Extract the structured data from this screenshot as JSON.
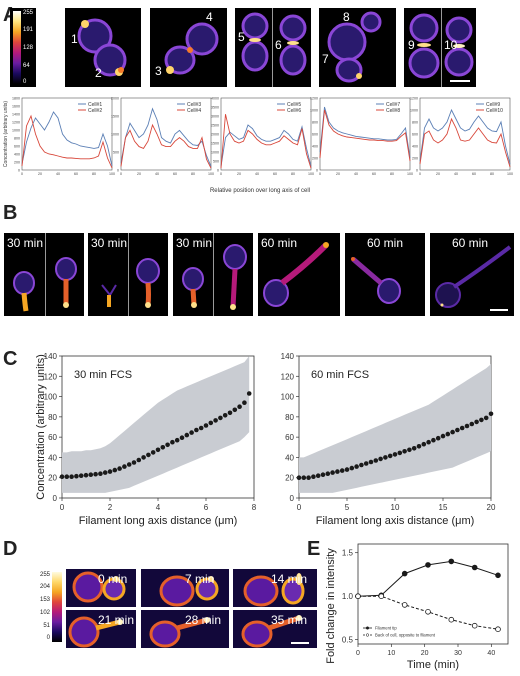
{
  "panels": {
    "A": "A",
    "B": "B",
    "C": "C",
    "D": "D",
    "E": "E"
  },
  "colormap_a": {
    "ticks": [
      "255",
      "191",
      "128",
      "64",
      "0"
    ]
  },
  "colormap_d": {
    "ticks": [
      "255",
      "204",
      "153",
      "102",
      "51",
      "0"
    ]
  },
  "cell_numbers": [
    "1",
    "2",
    "3",
    "4",
    "5",
    "6",
    "7",
    "8",
    "9",
    "10"
  ],
  "panel_b_times": [
    "30 min",
    "30 min",
    "30 min",
    "60 min",
    "60 min",
    "60 min"
  ],
  "panel_d_times": [
    "0 min",
    "7 min",
    "14 min",
    "21 min",
    "28 min",
    "35 min"
  ],
  "colors": {
    "blue": "#5b7fb5",
    "red": "#d8473a",
    "band": "#c9ccd2",
    "dots": "#1a1a1a"
  },
  "chart_data": [
    {
      "type": "line",
      "panel": "A",
      "ylabel": "Concentration (arbitrary units)",
      "xlabel": "Relative position over long axis of cell",
      "xlim": [
        0,
        100
      ],
      "x_ticks": [
        "0",
        "20",
        "40",
        "60",
        "80",
        "100"
      ],
      "subplots": [
        {
          "yticks": [
            "1800",
            "1600",
            "1400",
            "1200",
            "1000",
            "800",
            "600",
            "400",
            "200",
            "0"
          ],
          "ylim": [
            0,
            1800
          ],
          "series": [
            {
              "name": "Cell#1",
              "color": "#5b7fb5",
              "x": [
                0,
                5,
                10,
                15,
                20,
                25,
                30,
                35,
                40,
                45,
                50,
                55,
                60,
                65,
                70,
                75,
                80,
                85,
                90,
                95,
                100
              ],
              "y": [
                150,
                700,
                1050,
                1300,
                1150,
                1000,
                1200,
                1450,
                1300,
                900,
                750,
                680,
                650,
                600,
                580,
                560,
                540,
                560,
                900,
                600,
                100
              ]
            },
            {
              "name": "Cell#2",
              "color": "#d8473a",
              "x": [
                0,
                5,
                10,
                15,
                20,
                25,
                30,
                35,
                40,
                45,
                50,
                55,
                60,
                65,
                70,
                75,
                80,
                85,
                90,
                95,
                100
              ],
              "y": [
                100,
                1100,
                1350,
                900,
                600,
                450,
                400,
                380,
                350,
                320,
                300,
                300,
                290,
                280,
                280,
                280,
                300,
                350,
                700,
                300,
                50
              ]
            }
          ]
        },
        {
          "yticks": [
            "2000",
            "1500",
            "1000",
            "500",
            "0"
          ],
          "ylim": [
            0,
            2000
          ],
          "series": [
            {
              "name": "Cell#3",
              "color": "#5b7fb5",
              "x": [
                0,
                5,
                10,
                15,
                20,
                25,
                30,
                35,
                40,
                45,
                50,
                55,
                60,
                65,
                70,
                75,
                80,
                85,
                90,
                95,
                100
              ],
              "y": [
                200,
                900,
                1300,
                1100,
                900,
                1000,
                1250,
                1700,
                1400,
                900,
                800,
                750,
                1000,
                1100,
                950,
                800,
                700,
                680,
                800,
                400,
                100
              ]
            },
            {
              "name": "Cell#4",
              "color": "#d8473a",
              "x": [
                0,
                5,
                10,
                15,
                20,
                25,
                30,
                35,
                40,
                45,
                50,
                55,
                60,
                65,
                70,
                75,
                80,
                85,
                90,
                95,
                100
              ],
              "y": [
                100,
                900,
                1100,
                800,
                650,
                600,
                800,
                1250,
                1000,
                700,
                650,
                650,
                800,
                900,
                800,
                650,
                600,
                600,
                900,
                300,
                50
              ]
            }
          ]
        },
        {
          "yticks": [
            "4000",
            "3500",
            "3000",
            "2500",
            "2000",
            "1500",
            "1000",
            "500",
            "0"
          ],
          "ylim": [
            0,
            4000
          ],
          "series": [
            {
              "name": "Cell#5",
              "color": "#5b7fb5",
              "x": [
                0,
                5,
                10,
                15,
                20,
                25,
                30,
                35,
                40,
                45,
                50,
                55,
                60,
                65,
                70,
                75,
                80,
                85,
                90,
                95,
                100
              ],
              "y": [
                200,
                1800,
                2100,
                1900,
                1700,
                1800,
                2500,
                2300,
                1900,
                1700,
                1600,
                1600,
                1700,
                1800,
                2200,
                2000,
                1700,
                1600,
                2400,
                1200,
                200
              ]
            },
            {
              "name": "Cell#6",
              "color": "#d8473a",
              "x": [
                0,
                5,
                10,
                15,
                20,
                25,
                30,
                35,
                40,
                45,
                50,
                55,
                60,
                65,
                70,
                75,
                80,
                85,
                90,
                95,
                100
              ],
              "y": [
                100,
                3100,
                2000,
                1600,
                1500,
                1600,
                2200,
                2000,
                1700,
                1500,
                1400,
                1400,
                1500,
                1600,
                1900,
                1700,
                1500,
                1400,
                2300,
                900,
                100
              ]
            }
          ]
        },
        {
          "yticks": [
            "1200",
            "1000",
            "800",
            "600",
            "400",
            "200",
            "0"
          ],
          "ylim": [
            0,
            1200
          ],
          "series": [
            {
              "name": "Cell#7",
              "color": "#5b7fb5",
              "x": [
                0,
                5,
                10,
                15,
                20,
                25,
                30,
                35,
                40,
                45,
                50,
                55,
                60,
                65,
                70,
                75,
                80,
                85,
                90,
                95,
                100
              ],
              "y": [
                300,
                1050,
                800,
                700,
                650,
                620,
                600,
                580,
                560,
                550,
                540,
                530,
                520,
                520,
                510,
                500,
                500,
                510,
                600,
                700,
                200
              ]
            },
            {
              "name": "Cell#8",
              "color": "#d8473a",
              "x": [
                0,
                5,
                10,
                15,
                20,
                25,
                30,
                35,
                40,
                45,
                50,
                55,
                60,
                65,
                70,
                75,
                80,
                85,
                90,
                95,
                100
              ],
              "y": [
                200,
                1000,
                750,
                650,
                600,
                570,
                550,
                540,
                530,
                520,
                510,
                500,
                500,
                490,
                490,
                480,
                480,
                490,
                560,
                620,
                150
              ]
            }
          ]
        },
        {
          "yticks": [
            "1200",
            "1000",
            "800",
            "600",
            "400",
            "200",
            "0"
          ],
          "ylim": [
            0,
            1200
          ],
          "series": [
            {
              "name": "Cell#9",
              "color": "#5b7fb5",
              "x": [
                0,
                5,
                10,
                15,
                20,
                25,
                30,
                35,
                40,
                45,
                50,
                55,
                60,
                65,
                70,
                75,
                80,
                85,
                90,
                95,
                100
              ],
              "y": [
                150,
                700,
                850,
                700,
                650,
                700,
                800,
                1000,
                850,
                700,
                650,
                680,
                800,
                900,
                800,
                700,
                650,
                640,
                800,
                400,
                100
              ]
            },
            {
              "name": "Cell#10",
              "color": "#d8473a",
              "x": [
                0,
                5,
                10,
                15,
                20,
                25,
                30,
                35,
                40,
                45,
                50,
                55,
                60,
                65,
                70,
                75,
                80,
                85,
                90,
                95,
                100
              ],
              "y": [
                100,
                600,
                650,
                500,
                450,
                500,
                600,
                850,
                700,
                500,
                480,
                500,
                600,
                700,
                600,
                500,
                460,
                450,
                600,
                300,
                50
              ]
            }
          ]
        }
      ]
    },
    {
      "type": "scatter",
      "panel": "C-left",
      "annotation": "30 min FCS",
      "xlabel": "Filament long axis distance (μm)",
      "ylabel": "Concentration (arbitrary units)",
      "xlim": [
        0,
        8
      ],
      "ylim": [
        0,
        140
      ],
      "x_ticks": [
        "0",
        "2",
        "4",
        "6",
        "8"
      ],
      "y_ticks": [
        "0",
        "20",
        "40",
        "60",
        "80",
        "100",
        "120",
        "140"
      ],
      "x": [
        0.0,
        0.2,
        0.4,
        0.6,
        0.8,
        1.0,
        1.2,
        1.4,
        1.6,
        1.8,
        2.0,
        2.2,
        2.4,
        2.6,
        2.8,
        3.0,
        3.2,
        3.4,
        3.6,
        3.8,
        4.0,
        4.2,
        4.4,
        4.6,
        4.8,
        5.0,
        5.2,
        5.4,
        5.6,
        5.8,
        6.0,
        6.2,
        6.4,
        6.6,
        6.8,
        7.0,
        7.2,
        7.4,
        7.6,
        7.8
      ],
      "y": [
        21,
        21,
        21,
        21.5,
        22,
        22.5,
        23,
        23.5,
        24,
        25,
        26,
        27.5,
        29,
        31,
        33,
        35,
        37.5,
        40,
        42.5,
        45,
        47.5,
        50,
        52.5,
        55,
        57,
        59.5,
        62,
        64.5,
        67,
        69,
        71.5,
        74,
        76.5,
        79,
        81.5,
        84,
        87,
        90,
        94,
        103
      ],
      "band_low": [
        5,
        5,
        5,
        5,
        5,
        5,
        5,
        5,
        5,
        5,
        6,
        7,
        8,
        9,
        10,
        12,
        14,
        16,
        18,
        20,
        22,
        24,
        26,
        28,
        30,
        32,
        34,
        36,
        38,
        40,
        42,
        44,
        46,
        48,
        50,
        52,
        54,
        56,
        60,
        65
      ],
      "band_high": [
        45,
        45,
        46,
        46,
        46,
        47,
        47,
        48,
        49,
        51,
        54,
        58,
        62,
        66,
        70,
        74,
        78,
        82,
        86,
        90,
        94,
        97,
        100,
        103,
        106,
        108,
        110,
        112,
        114,
        116,
        118,
        120,
        122,
        124,
        126,
        128,
        130,
        132,
        134,
        140
      ]
    },
    {
      "type": "scatter",
      "panel": "C-right",
      "annotation": "60 min FCS",
      "xlabel": "Filament long axis distance (μm)",
      "ylabel": "",
      "xlim": [
        0,
        20
      ],
      "ylim": [
        0,
        140
      ],
      "x_ticks": [
        "0",
        "5",
        "10",
        "15",
        "20"
      ],
      "y_ticks": [
        "0",
        "20",
        "40",
        "60",
        "80",
        "100",
        "120",
        "140"
      ],
      "x": [
        0.0,
        0.5,
        1.0,
        1.5,
        2.0,
        2.5,
        3.0,
        3.5,
        4.0,
        4.5,
        5.0,
        5.5,
        6.0,
        6.5,
        7.0,
        7.5,
        8.0,
        8.5,
        9.0,
        9.5,
        10.0,
        10.5,
        11.0,
        11.5,
        12.0,
        12.5,
        13.0,
        13.5,
        14.0,
        14.5,
        15.0,
        15.5,
        16.0,
        16.5,
        17.0,
        17.5,
        18.0,
        18.5,
        19.0,
        19.5,
        20.0
      ],
      "y": [
        20,
        20,
        20,
        21,
        22,
        23,
        24,
        25,
        26,
        27,
        28,
        29.5,
        31,
        32.5,
        34,
        35.5,
        37,
        38.5,
        40,
        41.5,
        43,
        44.5,
        46,
        47.5,
        49,
        51,
        53,
        55,
        57,
        59,
        61,
        63,
        65,
        67,
        69,
        71,
        73,
        75,
        77,
        79,
        83
      ],
      "band_low": [
        5,
        5,
        5,
        5,
        5,
        5,
        5,
        5,
        6,
        7,
        8,
        9,
        10,
        11,
        12,
        13,
        14,
        15,
        16,
        17,
        18,
        19,
        20,
        21,
        22,
        23,
        24,
        25,
        26,
        27,
        28,
        29,
        30,
        32,
        34,
        36,
        38,
        40,
        42,
        44,
        46
      ],
      "band_high": [
        40,
        40,
        42,
        44,
        46,
        48,
        50,
        52,
        54,
        56,
        58,
        60,
        62,
        64,
        66,
        68,
        70,
        72,
        74,
        76,
        78,
        80,
        82,
        84,
        86,
        88,
        90,
        92,
        95,
        98,
        101,
        104,
        107,
        110,
        113,
        116,
        119,
        122,
        125,
        128,
        132
      ]
    },
    {
      "type": "line",
      "panel": "E",
      "xlabel": "Time (min)",
      "ylabel": "Fold change in intensity",
      "xlim": [
        0,
        45
      ],
      "ylim": [
        0.45,
        1.6
      ],
      "x_ticks": [
        "0",
        "10",
        "20",
        "30",
        "40"
      ],
      "y_ticks": [
        "0.5",
        "1.0",
        "1.5"
      ],
      "series": [
        {
          "name": "Filament tip",
          "color": "#1a1a1a",
          "x": [
            0,
            7,
            14,
            21,
            28,
            35,
            42
          ],
          "y": [
            1.0,
            1.01,
            1.26,
            1.36,
            1.4,
            1.33,
            1.24
          ]
        },
        {
          "name": "Back of cell, opposite to filament",
          "color": "#1a1a1a",
          "dashed": true,
          "x": [
            0,
            7,
            14,
            21,
            28,
            35,
            42
          ],
          "y": [
            1.0,
            1.0,
            0.9,
            0.82,
            0.73,
            0.66,
            0.62
          ]
        }
      ]
    }
  ]
}
